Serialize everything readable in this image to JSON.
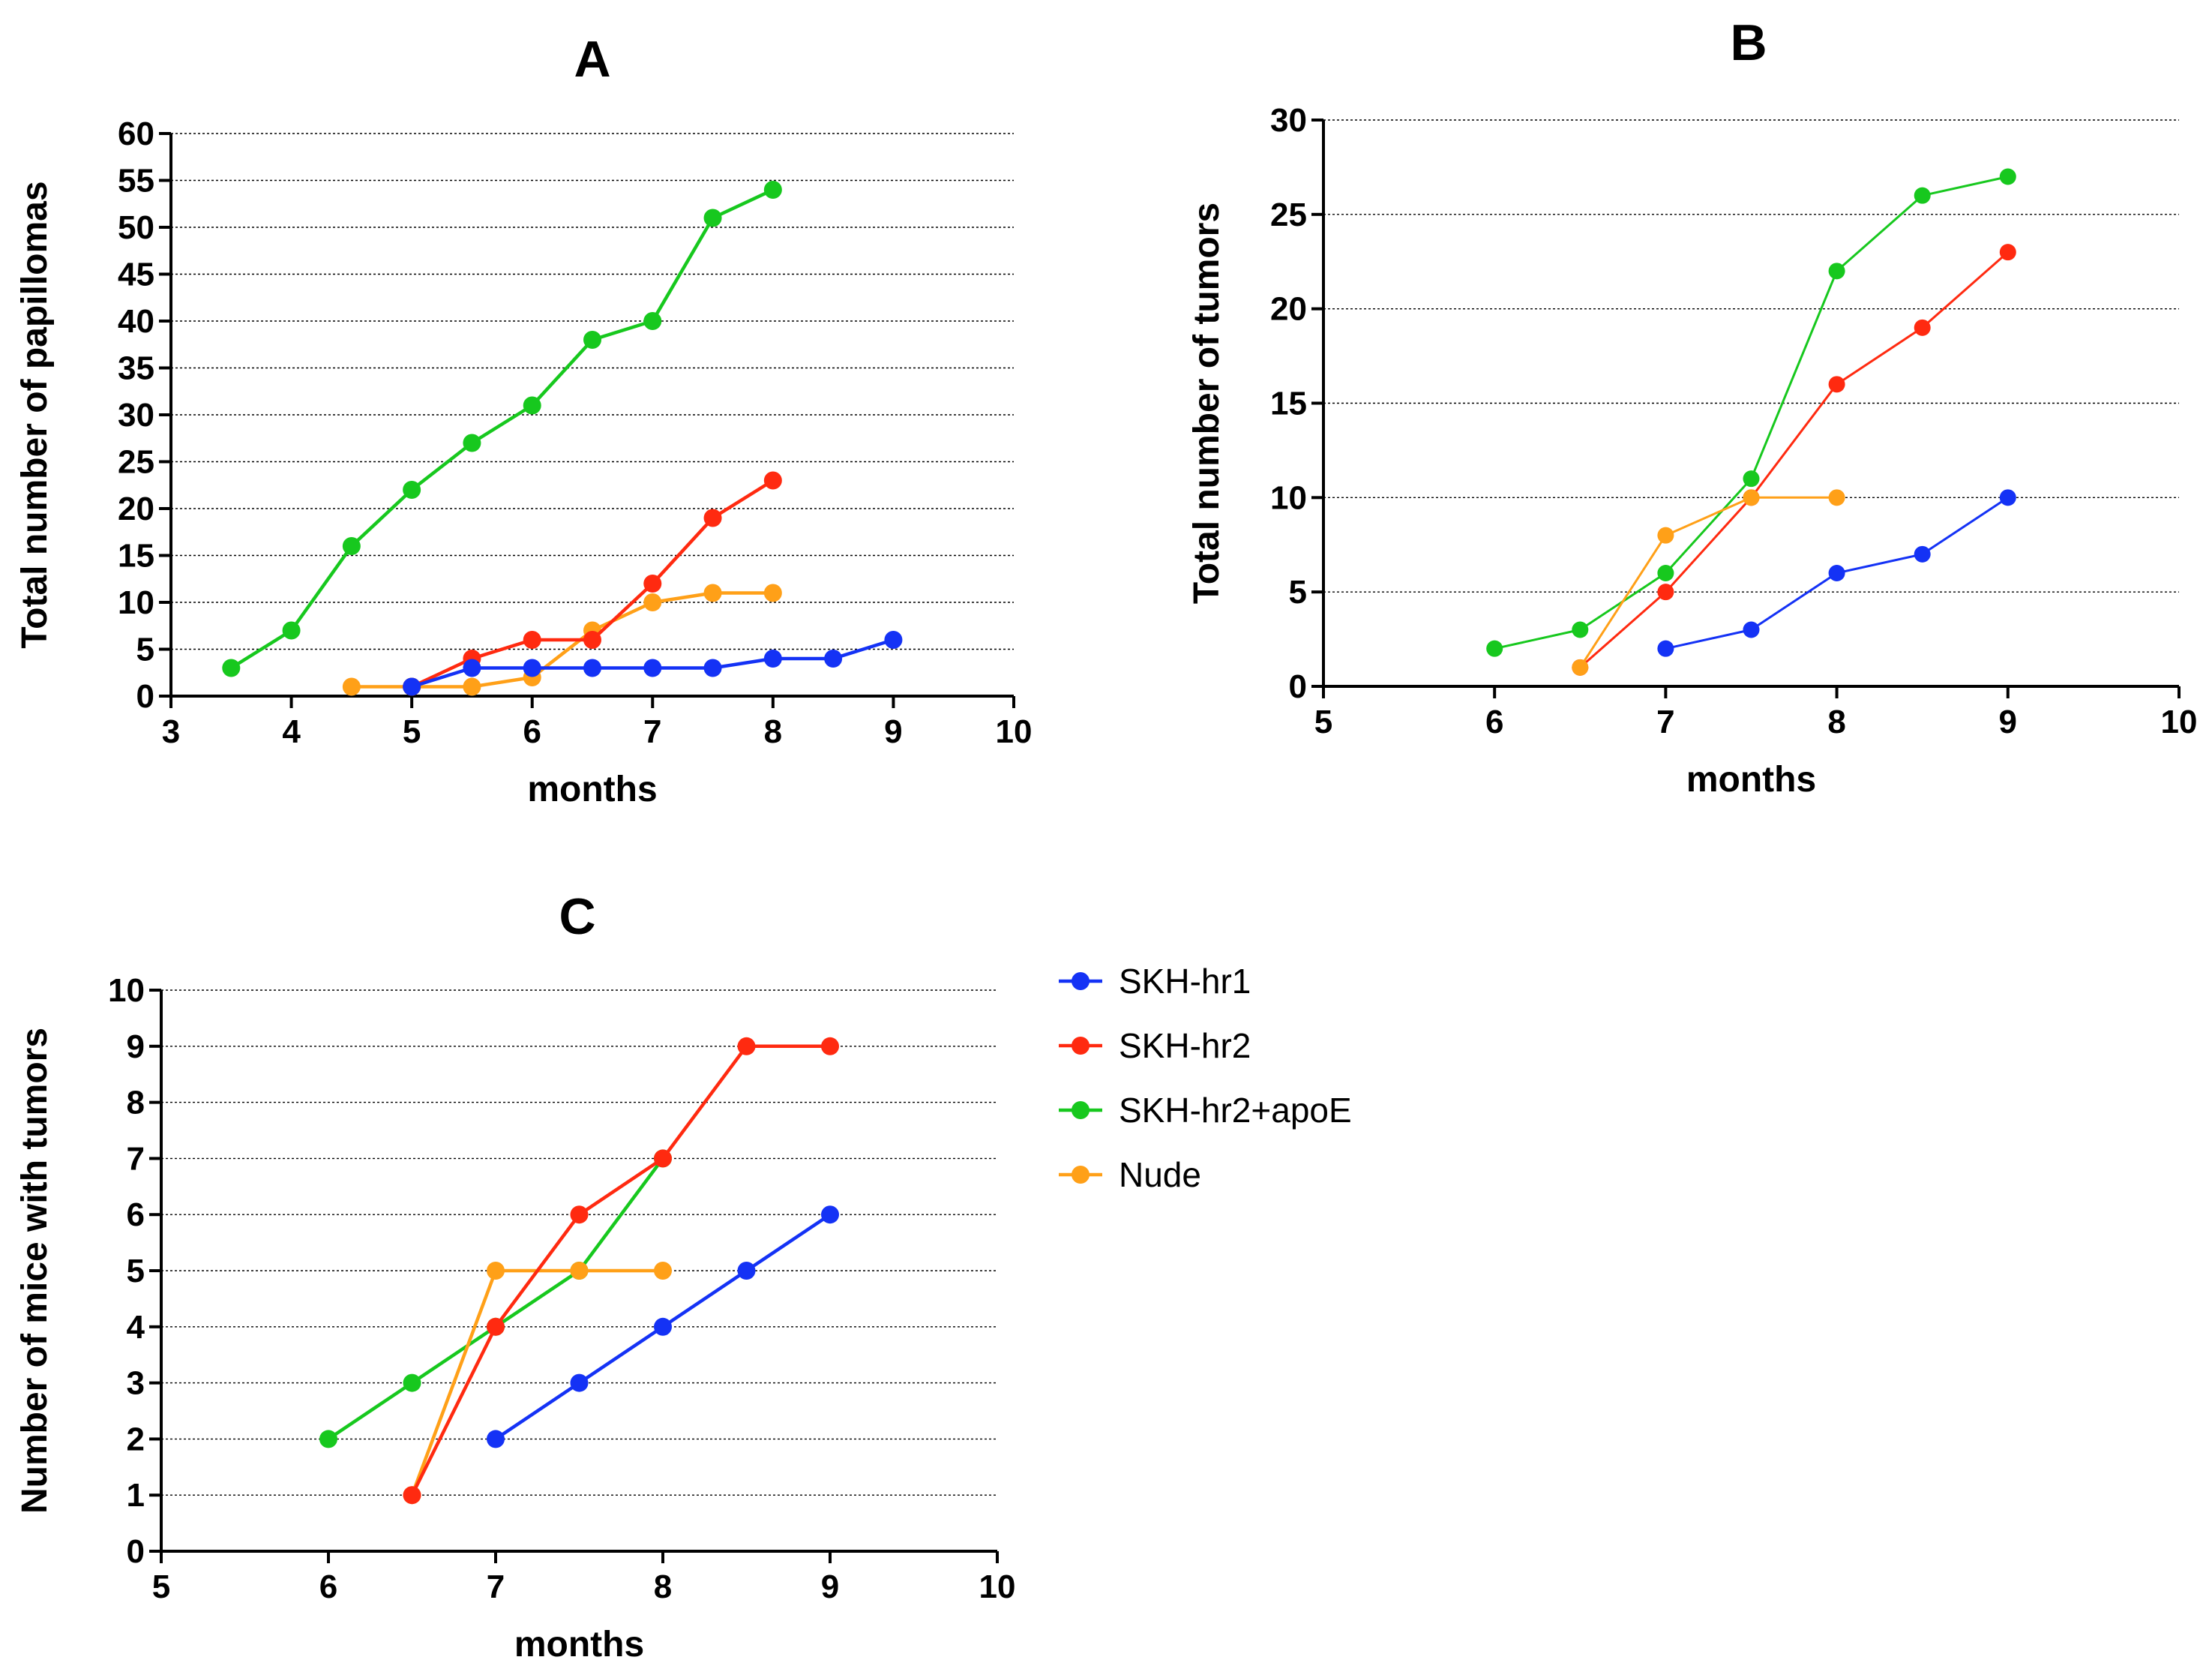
{
  "figure": {
    "colors": {
      "blue": "#1432f5",
      "red": "#ff2a10",
      "green": "#17c81e",
      "orange": "#ffa018"
    },
    "legend": [
      {
        "name": "SKH-hr1",
        "color": "#1432f5"
      },
      {
        "name": "SKH-hr2",
        "color": "#ff2a10"
      },
      {
        "name": "SKH-hr2+apoE",
        "color": "#17c81e"
      },
      {
        "name": "Nude",
        "color": "#ffa018"
      }
    ]
  },
  "chart_data": [
    {
      "id": "A",
      "type": "line",
      "title": "A",
      "xlabel": "months",
      "ylabel": "Total number of papillomas",
      "xlim": [
        3,
        10
      ],
      "ylim": [
        0,
        60
      ],
      "xticks": [
        3,
        4,
        5,
        6,
        7,
        8,
        9,
        10
      ],
      "yticks": [
        0,
        5,
        10,
        15,
        20,
        25,
        30,
        35,
        40,
        45,
        50,
        55,
        60
      ],
      "grid": "horizontal-dotted",
      "series": [
        {
          "name": "SKH-hr2+apoE",
          "color": "#17c81e",
          "x": [
            3.5,
            4,
            4.5,
            5,
            5.5,
            6,
            6.5,
            7,
            7.5,
            8
          ],
          "values": [
            3,
            7,
            16,
            22,
            27,
            31,
            38,
            40,
            51,
            54
          ]
        },
        {
          "name": "Nude",
          "color": "#ffa018",
          "x": [
            4.5,
            5,
            5.5,
            6,
            6.5,
            7,
            7.5,
            8
          ],
          "values": [
            1,
            1,
            1,
            2,
            7,
            10,
            11,
            11
          ]
        },
        {
          "name": "SKH-hr2",
          "color": "#ff2a10",
          "x": [
            5,
            5.5,
            6,
            6.5,
            7,
            7.5,
            8
          ],
          "values": [
            1,
            4,
            6,
            6,
            12,
            19,
            23
          ]
        },
        {
          "name": "SKH-hr1",
          "color": "#1432f5",
          "x": [
            5,
            5.5,
            6,
            6.5,
            7,
            7.5,
            8,
            8.5,
            9
          ],
          "values": [
            1,
            3,
            3,
            3,
            3,
            3,
            4,
            4,
            6
          ]
        }
      ]
    },
    {
      "id": "B",
      "type": "line",
      "title": "B",
      "xlabel": "months",
      "ylabel": "Total number of tumors",
      "xlim": [
        5,
        10
      ],
      "ylim": [
        0,
        30
      ],
      "xticks": [
        5,
        6,
        7,
        8,
        9,
        10
      ],
      "yticks": [
        0,
        5,
        10,
        15,
        20,
        25,
        30
      ],
      "grid": "horizontal-dotted",
      "series": [
        {
          "name": "SKH-hr2+apoE",
          "color": "#17c81e",
          "x": [
            6,
            6.5,
            7,
            7.5,
            8,
            8.5,
            9
          ],
          "values": [
            2,
            3,
            6,
            11,
            22,
            26,
            27
          ]
        },
        {
          "name": "SKH-hr2",
          "color": "#ff2a10",
          "x": [
            6.5,
            7,
            7.5,
            8,
            8.5,
            9
          ],
          "values": [
            1,
            5,
            10,
            16,
            19,
            23
          ]
        },
        {
          "name": "Nude",
          "color": "#ffa018",
          "x": [
            6.5,
            7,
            7.5,
            8
          ],
          "values": [
            1,
            8,
            10,
            10
          ]
        },
        {
          "name": "SKH-hr1",
          "color": "#1432f5",
          "x": [
            7,
            7.5,
            8,
            8.5,
            9
          ],
          "values": [
            2,
            3,
            6,
            7,
            10
          ]
        }
      ]
    },
    {
      "id": "C",
      "type": "line",
      "title": "C",
      "xlabel": "months",
      "ylabel": "Number of mice with tumors",
      "xlim": [
        5,
        10
      ],
      "ylim": [
        0,
        10
      ],
      "xticks": [
        5,
        6,
        7,
        8,
        9,
        10
      ],
      "yticks": [
        0,
        1,
        2,
        3,
        4,
        5,
        6,
        7,
        8,
        9,
        10
      ],
      "grid": "horizontal-dotted",
      "series": [
        {
          "name": "SKH-hr2+apoE",
          "color": "#17c81e",
          "x": [
            6,
            6.5,
            7,
            7.5,
            8
          ],
          "values": [
            2,
            3,
            4,
            5,
            7
          ]
        },
        {
          "name": "Nude",
          "color": "#ffa018",
          "x": [
            6.5,
            7,
            7.5,
            8
          ],
          "values": [
            1,
            5,
            5,
            5
          ]
        },
        {
          "name": "SKH-hr2",
          "color": "#ff2a10",
          "x": [
            6.5,
            7,
            7.5,
            8,
            8.5,
            9
          ],
          "values": [
            1,
            4,
            6,
            7,
            9,
            9
          ]
        },
        {
          "name": "SKH-hr1",
          "color": "#1432f5",
          "x": [
            7,
            7.5,
            8,
            8.5,
            9
          ],
          "values": [
            2,
            3,
            4,
            5,
            6
          ]
        }
      ]
    }
  ]
}
